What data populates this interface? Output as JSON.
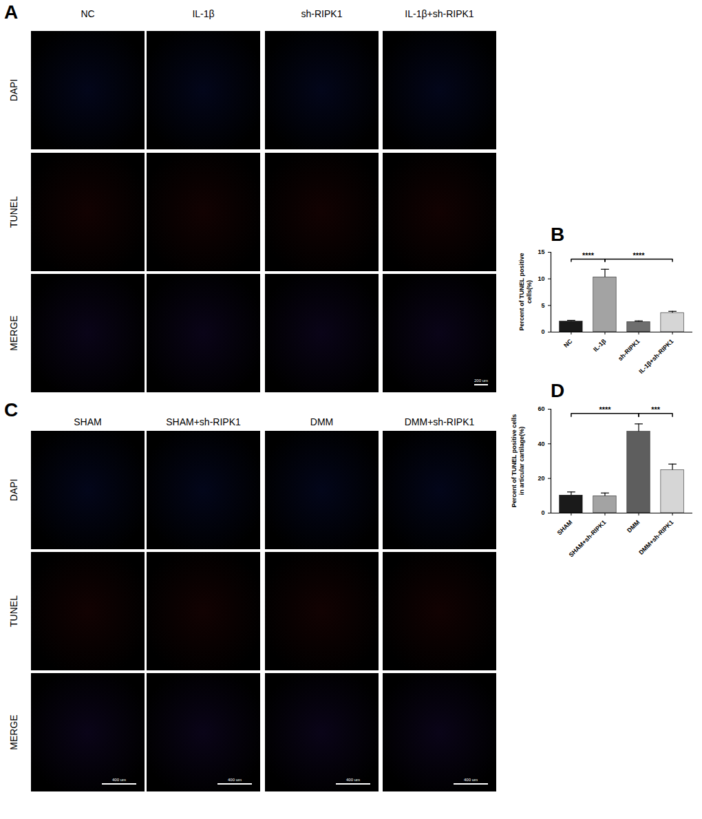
{
  "figure": {
    "panels": [
      {
        "letter": "A",
        "kind": "images",
        "columns": [
          "NC",
          "IL-1β",
          "sh-RIPK1",
          "IL-1β+sh-RIPK1"
        ],
        "rows": [
          "DAPI",
          "TUNEL",
          "MERGE"
        ],
        "scale_bar": "200 um"
      },
      {
        "letter": "C",
        "kind": "images",
        "columns": [
          "SHAM",
          "SHAM+sh-RIPK1",
          "DMM",
          "DMM+sh-RIPK1"
        ],
        "rows": [
          "DAPI",
          "TUNEL",
          "MERGE"
        ],
        "scale_bar": "400 um"
      }
    ]
  },
  "chart_data": [
    {
      "panel": "B",
      "type": "bar",
      "y_label": "Percent of TUNEL positive cells(%)",
      "categories": [
        "NC",
        "IL-1β",
        "sh-RIPK1",
        "IL-1β+sh-RIPK1"
      ],
      "values": [
        2.0,
        10.3,
        1.9,
        3.6
      ],
      "error": [
        0.2,
        1.5,
        0.2,
        0.3
      ],
      "colors": [
        "#1a1a1a",
        "#a3a3a3",
        "#6e6e6e",
        "#d6d6d6"
      ],
      "ylim": [
        0,
        15
      ],
      "yticks": [
        0,
        5,
        10,
        15
      ],
      "annotations": [
        {
          "from": "NC",
          "to": "IL-1β",
          "y": 13.7,
          "text": "****"
        },
        {
          "from": "IL-1β",
          "to": "IL-1β+sh-RIPK1",
          "y": 13.7,
          "text": "****"
        }
      ]
    },
    {
      "panel": "D",
      "type": "bar",
      "y_label": "Percent of TUNEL positive cells\nin articular cartilage(%)",
      "categories": [
        "SHAM",
        "SHAM+sh-RIPK1",
        "DMM",
        "DMM+sh-RIPK1"
      ],
      "values": [
        10.2,
        9.8,
        47.0,
        24.8
      ],
      "error": [
        2.0,
        1.8,
        4.5,
        3.5
      ],
      "colors": [
        "#1a1a1a",
        "#a3a3a3",
        "#5e5e5e",
        "#d6d6d6"
      ],
      "ylim": [
        0,
        60
      ],
      "yticks": [
        0,
        20,
        40,
        60
      ],
      "annotations": [
        {
          "from": "SHAM",
          "to": "DMM",
          "y": 57.5,
          "text": "****"
        },
        {
          "from": "DMM",
          "to": "DMM+sh-RIPK1",
          "y": 57.5,
          "text": "***"
        }
      ]
    }
  ]
}
